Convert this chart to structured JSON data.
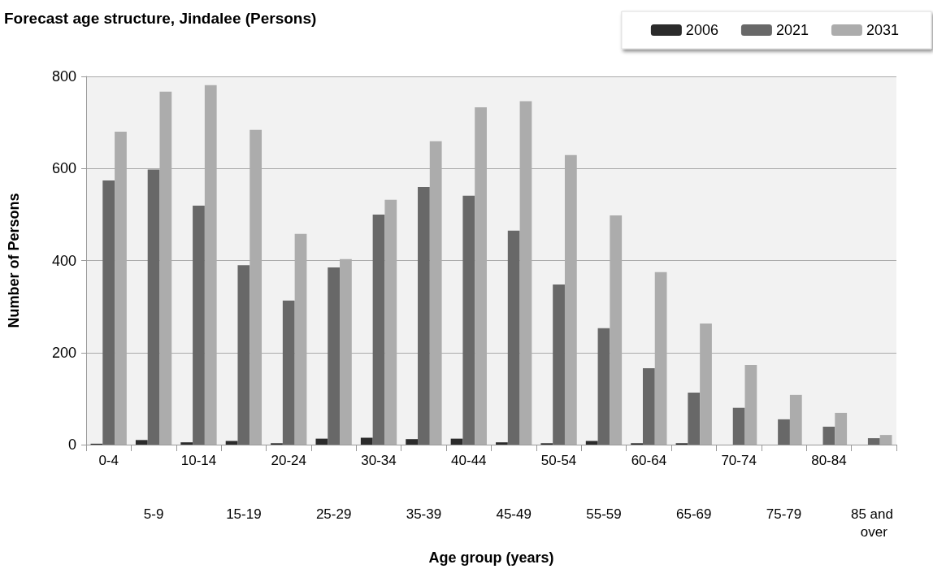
{
  "chart_data": {
    "type": "bar",
    "title": "Forecast age structure, Jindalee (Persons)",
    "xlabel": "Age group (years)",
    "ylabel": "Number of Persons",
    "categories": [
      "0-4",
      "5-9",
      "10-14",
      "15-19",
      "20-24",
      "25-29",
      "30-34",
      "35-39",
      "40-44",
      "45-49",
      "50-54",
      "55-59",
      "60-64",
      "65-69",
      "70-74",
      "75-79",
      "80-84",
      "85 and over"
    ],
    "series": [
      {
        "name": "2006",
        "color": "#2b2b2b",
        "values": [
          2,
          10,
          5,
          8,
          3,
          13,
          15,
          12,
          13,
          5,
          3,
          8,
          3,
          3,
          0,
          0,
          0,
          0
        ]
      },
      {
        "name": "2021",
        "color": "#686868",
        "values": [
          574,
          598,
          519,
          390,
          313,
          385,
          500,
          560,
          541,
          465,
          348,
          253,
          166,
          113,
          80,
          55,
          39,
          14
        ]
      },
      {
        "name": "2031",
        "color": "#acacac",
        "values": [
          680,
          767,
          781,
          684,
          458,
          403,
          532,
          659,
          733,
          746,
          629,
          498,
          375,
          263,
          173,
          108,
          69,
          21
        ]
      }
    ],
    "ylim": [
      0,
      800
    ],
    "yticks": [
      0,
      200,
      400,
      600,
      800
    ],
    "grid": "y",
    "legend": "top right"
  }
}
